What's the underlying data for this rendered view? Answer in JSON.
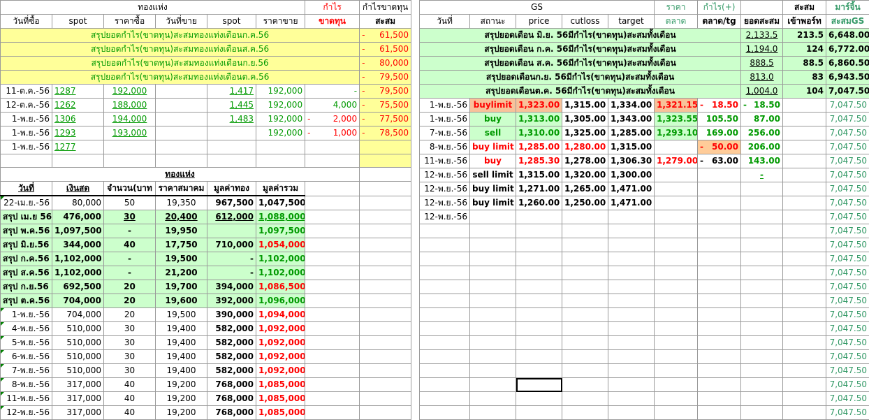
{
  "left_header": {
    "gold_bar": "ทองแห่ง",
    "profit": "กำไร",
    "profit_loss": "กำไรขาดทุน",
    "buy_date": "วันที่ซื้อ",
    "spot1": "spot",
    "buy_price": "ราคาซื้อ",
    "sell_date": "วันที่ขาย",
    "spot2": "spot",
    "sell_price": "ราคาขาย",
    "loss": "ขาดทุน",
    "cum": "สะสม"
  },
  "left_summary": [
    {
      "label": "สรุปยอดกำไร(ขาดทุน)สะสมทองแท่งเดือนก.ค.56",
      "dash": "-",
      "value": "61,500"
    },
    {
      "label": "สรุปยอดกำไร(ขาดทุน)สะสมทองแท่งเดือนส.ค.56",
      "dash": "-",
      "value": "61,500"
    },
    {
      "label": "สรุปยอดกำไร(ขาดทุน)สะสมทองแท่งเดือนก.ย.56",
      "dash": "-",
      "value": "80,000"
    },
    {
      "label": "สรุปยอดกำไร(ขาดทุน)สะสมทองแท่งเดือนต.ค.56",
      "dash": "-",
      "value": "79,500"
    }
  ],
  "left_trades": [
    {
      "date": "11-ต.ค.-56",
      "spot": "1287",
      "buy": "192,000",
      "spot2": "1,417",
      "sell": "192,000",
      "pl": "-",
      "cum_dash": "-",
      "cum": "79,500"
    },
    {
      "date": "12-ต.ค.-56",
      "spot": "1262",
      "buy": "188,000",
      "spot2": "1,445",
      "sell": "192,000",
      "pl": "4,000",
      "cum_dash": "-",
      "cum": "75,500"
    },
    {
      "date": "1-พ.ย.-56",
      "spot": "1306",
      "buy": "194,000",
      "spot2": "1,483",
      "sell": "192,000",
      "pl_dash": "-",
      "pl": "2,000",
      "cum_dash": "-",
      "cum": "77,500"
    },
    {
      "date": "1-พ.ย.-56",
      "spot": "1293",
      "buy": "193,000",
      "spot2": "",
      "sell": "192,000",
      "pl_dash": "-",
      "pl": "1,000",
      "cum_dash": "-",
      "cum": "78,500"
    },
    {
      "date": "1-พ.ย.-56",
      "spot": "1277"
    }
  ],
  "cash_header": {
    "gold_bar": "ทองแห่ง",
    "date": "วันที่",
    "cash": "เงินสด",
    "qty": "จำนวน(บาท",
    "assoc_price": "ราคาสมาคม",
    "gold_value": "มูลค่าทอง",
    "total_value": "มูลค่ารวม"
  },
  "cash_rows": [
    {
      "date": "22-เม.ย.-56",
      "cash": "80,000",
      "qty": "50",
      "price": "19,350",
      "gold": "967,500",
      "total": "1,047,500",
      "style": "plain"
    },
    {
      "date": "สรุป เม.ย 56",
      "cash": "476,000",
      "qty": "30",
      "price": "20,400",
      "gold": "612,000",
      "total": "1,088,000",
      "style": "sum_g"
    },
    {
      "date": "สรุป พ.ค.56",
      "cash": "1,097,500",
      "qty": "-",
      "price": "19,950",
      "gold": "",
      "total": "1,097,500",
      "style": "sum_g"
    },
    {
      "date": "สรุป มิ.ย.56",
      "cash": "344,000",
      "qty": "40",
      "price": "17,750",
      "gold": "710,000",
      "total": "1,054,000",
      "style": "sum_r"
    },
    {
      "date": "สรุป ก.ค.56",
      "cash": "1,102,000",
      "qty": "-",
      "price": "19,500",
      "gold": "-",
      "total": "1,102,000",
      "style": "sum_g"
    },
    {
      "date": "สรุป ส.ค.56",
      "cash": "1,102,000",
      "qty": "-",
      "price": "21,200",
      "gold": "-",
      "total": "1,102,000",
      "style": "sum_g"
    },
    {
      "date": "สรุป ก.ย.56",
      "cash": "692,500",
      "qty": "20",
      "price": "19,700",
      "gold": "394,000",
      "total": "1,086,500",
      "style": "sum_r"
    },
    {
      "date": "สรุป ต.ค.56",
      "cash": "704,000",
      "qty": "20",
      "price": "19,600",
      "gold": "392,000",
      "total": "1,096,000",
      "style": "sum_g"
    },
    {
      "date": "1-พ.ย.-56",
      "cash": "704,000",
      "qty": "20",
      "price": "19,500",
      "gold": "390,000",
      "total": "1,094,000",
      "style": "plain_r"
    },
    {
      "date": "4-พ.ย.-56",
      "cash": "510,000",
      "qty": "30",
      "price": "19,400",
      "gold": "582,000",
      "total": "1,092,000",
      "style": "plain_r"
    },
    {
      "date": "5-พ.ย.-56",
      "cash": "510,000",
      "qty": "30",
      "price": "19,400",
      "gold": "582,000",
      "total": "1,092,000",
      "style": "plain_r"
    },
    {
      "date": "6-พ.ย.-56",
      "cash": "510,000",
      "qty": "30",
      "price": "19,400",
      "gold": "582,000",
      "total": "1,092,000",
      "style": "plain_r"
    },
    {
      "date": "7-พ.ย.-56",
      "cash": "510,000",
      "qty": "30",
      "price": "19,400",
      "gold": "582,000",
      "total": "1,092,000",
      "style": "plain_r"
    },
    {
      "date": "8-พ.ย.-56",
      "cash": "317,000",
      "qty": "40",
      "price": "19,200",
      "gold": "768,000",
      "total": "1,085,000",
      "style": "plain_r"
    },
    {
      "date": "11-พ.ย.-56",
      "cash": "317,000",
      "qty": "40",
      "price": "19,200",
      "gold": "768,000",
      "total": "1,085,000",
      "style": "plain_r"
    },
    {
      "date": "12-พ.ย.-56",
      "cash": "317,000",
      "qty": "40",
      "price": "19,200",
      "gold": "768,000",
      "total": "1,085,000",
      "style": "plain_r"
    }
  ],
  "right_header": {
    "gs": "GS",
    "price_th": "ราคา",
    "profit_plus": "กำไร(+)",
    "cum": "สะสม",
    "marjin": "มาร์จิ้น",
    "date": "วันที่",
    "status": "สถานะ",
    "price": "price",
    "cutloss": "cutloss",
    "target": "target",
    "market": "ตลาด",
    "market_tg": "ตลาด/tg",
    "cum_total": "ยอดสะสม",
    "port_in": "เข้าพอร์ท",
    "cum_gs": "สะสมGS"
  },
  "right_summary": [
    {
      "label": "สรุปยอดเดือน มิ.ย. 56มีกำไร(ขาดทุน)สะสมทั้งเดือน",
      "total": "2,133.5",
      "port": "213.5",
      "gs": "6,648.00"
    },
    {
      "label": "สรุปยอดเดือน ก.ค. 56มีกำไร(ขาดทุน)สะสมทั้งเดือน",
      "total": "1,194.0",
      "port": "124",
      "gs": "6,772.00"
    },
    {
      "label": "สรุปยอดเดือน ส.ค. 56มีกำไร(ขาดทุน)สะสมทั้งเดือน",
      "total": "888.5",
      "port": "88.5",
      "gs": "6,860.50"
    },
    {
      "label": "สรุปยอดเดือนก.ย. 56มีกำไร(ขาดทุน)สะสมทั้งเดือน",
      "total": "813.0",
      "port": "83",
      "gs": "6,943.50"
    },
    {
      "label": "สรุปยอดเดือนต.ค. 56มีกำไร(ขาดทุน)สะสมทั้งเดือน",
      "total": "1,004.0",
      "port": "104",
      "gs": "7,047.50"
    }
  ],
  "right_trades": [
    {
      "date": "1-พ.ย.-56",
      "status": "buylimit",
      "price": "1,323.00",
      "cutloss": "1,315.00",
      "target": "1,334.00",
      "market": "1,321.15",
      "pl_dash": "-",
      "pl": "18.50",
      "cum_dash": "-",
      "cum": "18.50",
      "gs": "7,047.50",
      "kind": "bl"
    },
    {
      "date": "1-พ.ย.-56",
      "status": "buy",
      "price": "1,313.00",
      "cutloss": "1,305.00",
      "target": "1,343.00",
      "market": "1,323.55",
      "pl": "105.50",
      "cum": "87.00",
      "gs": "7,047.50",
      "kind": "buy"
    },
    {
      "date": "7-พ.ย.-56",
      "status": "sell",
      "price": "1,310.00",
      "cutloss": "1,325.00",
      "target": "1,285.00",
      "market": "1,293.10",
      "pl": "169.00",
      "cum": "256.00",
      "gs": "7,047.50",
      "kind": "sell"
    },
    {
      "date": "8-พ.ย.-56",
      "status": "buy limit",
      "price": "1,285.00",
      "cutloss": "1,280.00",
      "target": "1,315.00",
      "market": "",
      "pl_dash": "-",
      "pl": "50.00",
      "cum": "206.00",
      "gs": "7,047.50",
      "kind": "bl2"
    },
    {
      "date": "11-พ.ย.-56",
      "status": "buy",
      "price": "1,285.30",
      "cutloss": "1,278.00",
      "target": "1,306.30",
      "market": "1,279.00",
      "pl_dash": "-",
      "pl": "63.00",
      "cum": "143.00",
      "gs": "7,047.50",
      "kind": "buy2"
    },
    {
      "date": "12-พ.ย.-56",
      "status": "sell limit",
      "price": "1,315.00",
      "cutloss": "1,320.00",
      "target": "1,300.00",
      "market": "",
      "pl": "",
      "cum": "-",
      "gs": "7,047.50",
      "kind": "plain"
    },
    {
      "date": "12-พ.ย.-56",
      "status": "buy limit",
      "price": "1,271.00",
      "cutloss": "1,265.00",
      "target": "1,471.00",
      "market": "",
      "pl": "",
      "cum": "",
      "gs": "7,047.50",
      "kind": "plain"
    },
    {
      "date": "12-พ.ย.-56",
      "status": "buy limit",
      "price": "1,260.00",
      "cutloss": "1,250.00",
      "target": "1,471.00",
      "market": "",
      "pl": "",
      "cum": "",
      "gs": "7,047.50",
      "kind": "plain"
    },
    {
      "date": "12-พ.ย.-56",
      "status": "",
      "price": "",
      "cutloss": "",
      "target": "",
      "market": "",
      "pl": "",
      "cum": "",
      "gs": "7,047.50",
      "kind": "plain"
    }
  ],
  "gs_fill": "7,047.50",
  "colors": {
    "yellow": "#ffff99",
    "green": "#ccffcc",
    "salmon": "#f8c29a",
    "orange": "#ffcc99",
    "red": "#ff0000",
    "green_text": "#009900"
  }
}
